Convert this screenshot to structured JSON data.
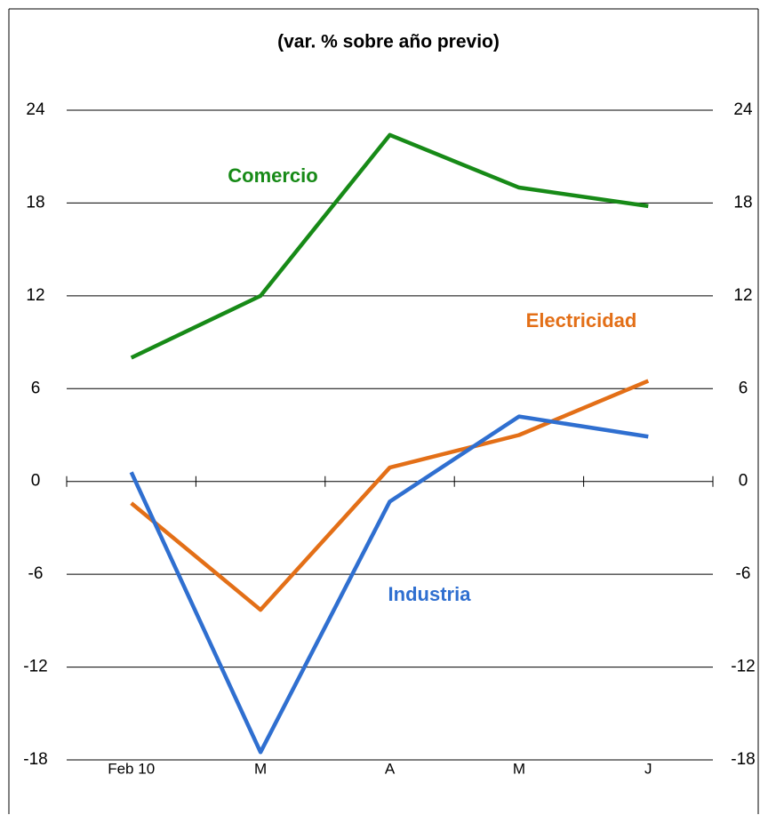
{
  "chart_data": {
    "type": "line",
    "title": "(var. % sobre año previo)",
    "categories": [
      "Feb 10",
      "M",
      "A",
      "M",
      "J"
    ],
    "series": [
      {
        "name": "Comercio",
        "color": "#178a17",
        "values": [
          8.0,
          12.0,
          22.4,
          19.0,
          17.8
        ]
      },
      {
        "name": "Electricidad",
        "color": "#e36f17",
        "values": [
          -1.4,
          -8.3,
          0.9,
          3.0,
          6.5
        ]
      },
      {
        "name": "Industria",
        "color": "#2f6fd0",
        "values": [
          0.6,
          -17.5,
          -1.3,
          4.2,
          2.9
        ]
      }
    ],
    "ylim": [
      -18,
      24
    ],
    "yticks": [
      -18,
      -12,
      -6,
      0,
      6,
      12,
      18,
      24
    ],
    "y2lim": [
      -18,
      24
    ],
    "y2ticks": [
      -18,
      -12,
      -6,
      0,
      6,
      12,
      18,
      24
    ],
    "grid": true
  }
}
